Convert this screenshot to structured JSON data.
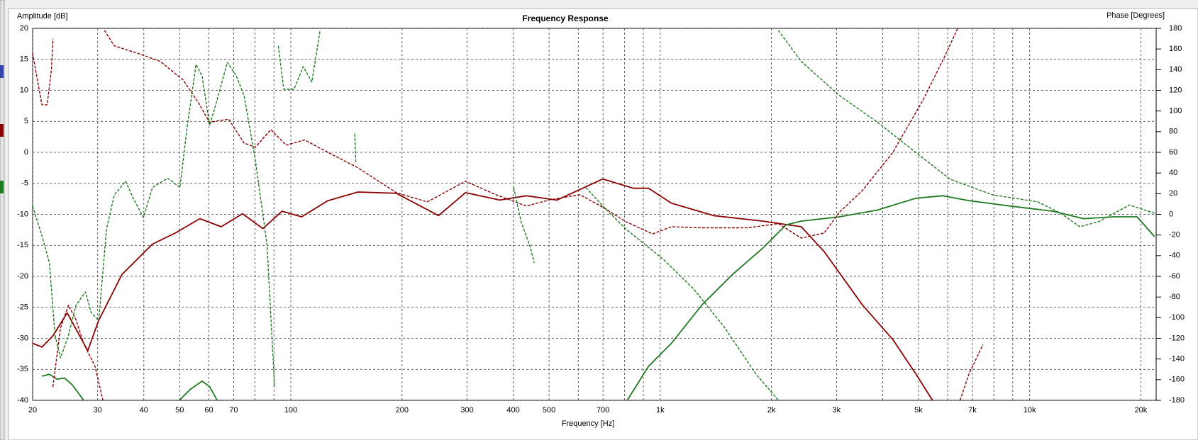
{
  "chart_data": {
    "type": "line",
    "title": "Frequency Response",
    "x_label": "Frequency [Hz]",
    "y_label": "Amplitude [dB]",
    "y2_label": "Phase [Degrees]",
    "xscale": "log",
    "xlim": [
      20,
      22000
    ],
    "xticks": [
      20,
      30,
      40,
      50,
      60,
      70,
      100,
      200,
      300,
      400,
      500,
      700,
      {
        "value": 1000,
        "label": "1k"
      },
      {
        "value": 2000,
        "label": "2k"
      },
      {
        "value": 3000,
        "label": "3k"
      },
      {
        "value": 5000,
        "label": "5k"
      },
      {
        "value": 7000,
        "label": "7k"
      },
      {
        "value": 10000,
        "label": "10k"
      },
      {
        "value": 20000,
        "label": "20k"
      }
    ],
    "xgrid_minor": [
      80,
      90,
      600,
      800,
      900,
      4000,
      6000,
      8000,
      9000
    ],
    "ylim": [
      -40,
      20
    ],
    "yticks": [
      20,
      15,
      10,
      5,
      0,
      -5,
      -10,
      -15,
      -20,
      -25,
      -30,
      -35,
      -40
    ],
    "y2lim": [
      -180,
      180
    ],
    "y2ticks": [
      180,
      160,
      140,
      120,
      100,
      80,
      60,
      40,
      20,
      0,
      -20,
      -40,
      -60,
      -80,
      -100,
      -120,
      -140,
      -160,
      -180
    ],
    "grid": true,
    "series": [
      {
        "color": "#8b0000",
        "dashed": false,
        "x": [
          20,
          21.2,
          22.7,
          24.8,
          28.2,
          30.2,
          34.9,
          42.2,
          48.7,
          56.7,
          64.8,
          74,
          84,
          94.7,
          107,
          126,
          152,
          193,
          251,
          297,
          368,
          434,
          525,
          699,
          845,
          930,
          1072,
          1394,
          1898,
          2408,
          2778,
          3524,
          4262,
          4916,
          5458
        ],
        "values": [
          -30.8,
          -31.4,
          -29.6,
          -25.9,
          -32,
          -27.1,
          -19.7,
          -14.8,
          -13,
          -10.7,
          -12,
          -9.9,
          -12.3,
          -9.5,
          -10.4,
          -7.8,
          -6.4,
          -6.6,
          -10.2,
          -6.5,
          -7.7,
          -7,
          -7.7,
          -4.3,
          -5.8,
          -5.8,
          -8.2,
          -10.2,
          -11.1,
          -12,
          -16,
          -24.6,
          -30.2,
          -35.7,
          -40
        ]
      },
      {
        "color": "#1f7a1f",
        "dashed": false,
        "x": [
          21.2,
          22.2,
          23.3,
          24.4,
          25.6,
          27.5,
          null,
          49.9,
          53.5,
          57.5,
          60.3,
          63.2,
          null,
          814,
          930,
          1072,
          1297,
          1569,
          1898,
          2190,
          2408,
          3056,
          3876,
          4916,
          5807,
          6858,
          8698,
          11572,
          13996,
          16932,
          19532,
          21780
        ],
        "values": [
          -36.1,
          -35.8,
          -36.6,
          -36.4,
          -37.5,
          -40,
          null,
          -40,
          -38.2,
          -36.9,
          -37.8,
          -40,
          null,
          -40,
          -34.5,
          -30.8,
          -24.6,
          -19.7,
          -15.4,
          -11.7,
          -11.1,
          -10.4,
          -9.3,
          -7.4,
          -7,
          -7.8,
          -8.6,
          -9.5,
          -10.7,
          -10.4,
          -10.4,
          -13.6
        ]
      },
      {
        "color": "#8b0000",
        "dashed": true,
        "axis": "y2",
        "x": [
          20,
          20.7,
          21.2,
          21.9,
          22.5,
          22.7,
          null,
          22.7,
          23.8,
          25,
          26.2,
          27.5,
          29.5,
          31,
          null,
          31.3,
          33.3,
          38.4,
          44.3,
          51.1,
          56.2,
          60.3,
          64.8,
          67.9,
          74.7,
          80.2,
          88.3,
          97.1,
          109,
          126,
          152,
          193,
          234,
          297,
          359,
          434,
          501,
          606,
          699,
          806,
          953,
          1072,
          1297,
          1726,
          2088,
          2408,
          2778,
          3056,
          3524,
          4262,
          5154,
          5946,
          6386,
          null,
          6478,
          6858,
          7473
        ],
        "values": [
          156,
          126,
          106,
          106,
          141,
          170,
          null,
          -167,
          -110,
          -88,
          -102,
          -125,
          -147,
          -180,
          null,
          178,
          163,
          156,
          148,
          130,
          108,
          89,
          91,
          92,
          69,
          65,
          82,
          67,
          72,
          60,
          45,
          21,
          12,
          32,
          19,
          8,
          14,
          19,
          7,
          -7,
          -19,
          -12,
          -13,
          -13,
          -9,
          -23,
          -18,
          2,
          23,
          60,
          111,
          156,
          180,
          null,
          -180,
          -154,
          -126
        ]
      },
      {
        "color": "#1f7a1f",
        "dashed": true,
        "axis": "y2",
        "x": [
          20,
          21.2,
          22.2,
          23,
          23.8,
          25,
          26.2,
          27.8,
          28.8,
          30.2,
          31.7,
          33.3,
          35.7,
          37.5,
          39.9,
          42.2,
          46.4,
          50.1,
          52.3,
          55.4,
          57.5,
          60.3,
          63.2,
          67.3,
          71.2,
          74.7,
          80.2,
          86.2,
          90.4,
          null,
          92.5,
          95.7,
          102,
          108,
          114,
          120,
          null,
          149,
          150,
          null,
          401,
          420,
          445,
          456,
          null,
          629,
          699,
          806,
          1023,
          1237,
          1496,
          1810,
          2088,
          null,
          2088,
          2408,
          3056,
          3876,
          4916,
          6091,
          7911,
          10524,
          12138,
          13668,
          15394,
          18622,
          21780
        ],
        "values": [
          8,
          -21,
          -47,
          -117,
          -139,
          -117,
          -88,
          -75,
          -95,
          -103,
          -14,
          19,
          32,
          15,
          -3,
          26,
          35,
          26,
          82,
          145,
          134,
          86,
          111,
          147,
          134,
          115,
          52,
          -29,
          -167,
          null,
          163,
          121,
          121,
          143,
          128,
          178,
          null,
          78,
          49,
          null,
          26,
          -7,
          -32,
          -47,
          null,
          26,
          8,
          -14,
          -44,
          -73,
          -110,
          -154,
          -180,
          null,
          178,
          148,
          115,
          89,
          60,
          34,
          19,
          12,
          1,
          -12,
          -7,
          9,
          1
        ]
      }
    ]
  }
}
